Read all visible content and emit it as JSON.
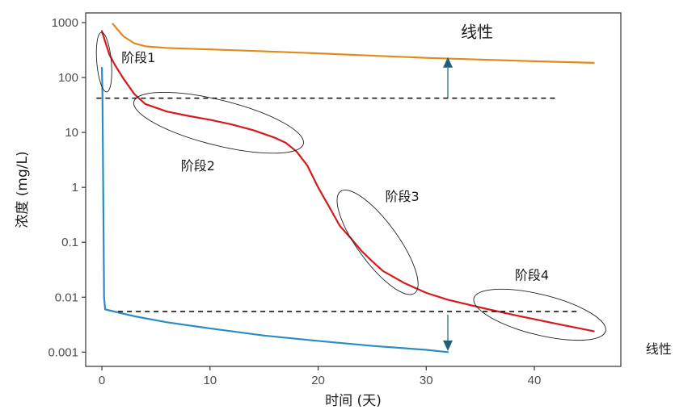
{
  "chart_data": {
    "type": "line",
    "xlabel": "时间 (天)",
    "ylabel": "浓度 (mg/L)",
    "xlim": [
      -1.5,
      48
    ],
    "ylim": [
      0.00055,
      1500
    ],
    "x_scale": "linear",
    "y_scale": "log",
    "x_ticks": [
      0,
      10,
      20,
      30,
      40
    ],
    "x_tick_labels": [
      "0",
      "10",
      "20",
      "30",
      "40"
    ],
    "y_ticks": [
      1000,
      100,
      10,
      1,
      0.1,
      0.01,
      0.001
    ],
    "y_tick_labels": [
      "1000",
      "100",
      "10",
      "1",
      "0.1",
      "0.01",
      "0.001"
    ],
    "grid": false,
    "colors": {
      "orange": "#e08a1e",
      "red": "#d7191c",
      "blue": "#2b8cc4",
      "arrow": "#1f5f7a"
    },
    "series": [
      {
        "color": "#e08a1e",
        "points": [
          [
            1,
            950
          ],
          [
            2,
            560
          ],
          [
            3,
            420
          ],
          [
            4,
            370
          ],
          [
            6,
            345
          ],
          [
            10,
            325
          ],
          [
            15,
            300
          ],
          [
            20,
            275
          ],
          [
            25,
            250
          ],
          [
            30,
            228
          ],
          [
            35,
            212
          ],
          [
            40,
            198
          ],
          [
            45.5,
            185
          ]
        ]
      },
      {
        "color": "#d7191c",
        "points": [
          [
            0,
            700
          ],
          [
            0.3,
            450
          ],
          [
            0.7,
            260
          ],
          [
            1.2,
            170
          ],
          [
            2,
            95
          ],
          [
            3,
            50
          ],
          [
            4,
            33
          ],
          [
            6,
            24
          ],
          [
            8,
            20
          ],
          [
            10,
            17
          ],
          [
            12,
            14
          ],
          [
            14,
            11
          ],
          [
            16,
            8
          ],
          [
            17,
            6.5
          ],
          [
            18,
            4.5
          ],
          [
            19,
            2.5
          ],
          [
            20,
            1.0
          ],
          [
            21,
            0.45
          ],
          [
            22,
            0.2
          ],
          [
            23,
            0.12
          ],
          [
            24,
            0.07
          ],
          [
            25,
            0.045
          ],
          [
            26,
            0.03
          ],
          [
            28,
            0.018
          ],
          [
            30,
            0.012
          ],
          [
            32,
            0.009
          ],
          [
            35,
            0.0065
          ],
          [
            38,
            0.0048
          ],
          [
            42,
            0.0033
          ],
          [
            45.5,
            0.0024
          ]
        ]
      },
      {
        "color": "#2b8cc4",
        "points": [
          [
            0,
            150
          ],
          [
            0.05,
            50
          ],
          [
            0.12,
            1
          ],
          [
            0.2,
            0.01
          ],
          [
            0.3,
            0.006
          ],
          [
            3,
            0.0045
          ],
          [
            6,
            0.0035
          ],
          [
            10,
            0.0027
          ],
          [
            15,
            0.002
          ],
          [
            20,
            0.0016
          ],
          [
            25,
            0.0013
          ],
          [
            30,
            0.0011
          ],
          [
            32,
            0.001
          ]
        ]
      }
    ],
    "reference_lines": [
      {
        "y": 42,
        "x": [
          -0.5,
          42
        ],
        "style": "dashed"
      },
      {
        "y": 0.0055,
        "x": [
          1.5,
          44
        ],
        "style": "dashed"
      }
    ],
    "arrows": [
      {
        "x": 32,
        "from": 42,
        "to": 235
      },
      {
        "x": 32,
        "from": 0.0048,
        "to": 0.00105
      }
    ],
    "ellipses": [
      {
        "label": "阶段1",
        "cx": 0.2,
        "cy": 190,
        "rx": 9,
        "ry": 37,
        "angle": -5
      },
      {
        "label": "阶段2",
        "cx": 10.8,
        "cy": 15,
        "rx": 108,
        "ry": 28,
        "angle": 14
      },
      {
        "label": "阶段3",
        "cx": 25.5,
        "cy": 0.1,
        "rx": 78,
        "ry": 25,
        "angle": 54
      },
      {
        "label": "阶段4",
        "cx": 40.5,
        "cy": 0.0048,
        "rx": 84,
        "ry": 25,
        "angle": 14
      }
    ],
    "annotations": [
      {
        "text": "阶段1",
        "x": 1.8,
        "y": 190
      },
      {
        "text": "阶段2",
        "x": 7.3,
        "y": 2.05
      },
      {
        "text": "阶段3",
        "x": 26.2,
        "y": 0.57
      },
      {
        "text": "阶段4",
        "x": 38.2,
        "y": 0.021
      }
    ],
    "title_annotations": [
      {
        "text": "线性",
        "x": 33.2,
        "y": 530,
        "outside": false
      },
      {
        "text": "线性",
        "x": 50.3,
        "y": 0.00095,
        "outside": true
      }
    ]
  }
}
